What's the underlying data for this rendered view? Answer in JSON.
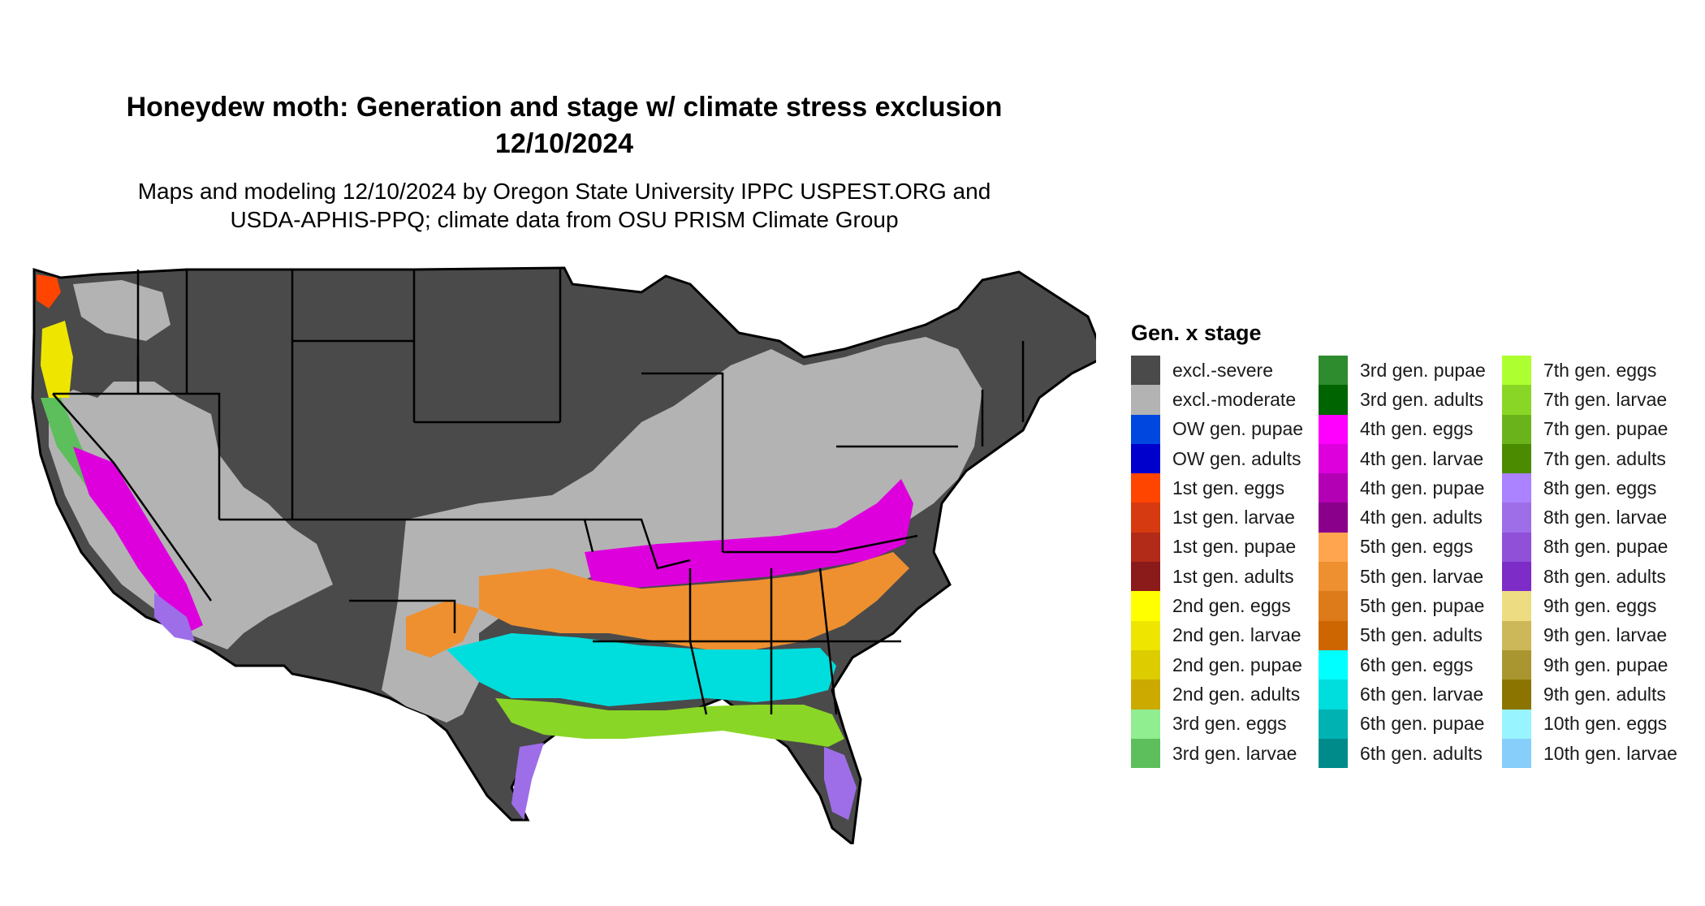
{
  "title": {
    "line1": "Honeydew moth: Generation and stage w/ climate stress exclusion",
    "line2": "12/10/2024"
  },
  "subtitle": {
    "line1": "Maps and modeling 12/10/2024 by Oregon State University IPPC USPEST.ORG and",
    "line2": "USDA-APHIS-PPQ; climate data from OSU PRISM Climate Group"
  },
  "legend": {
    "title": "Gen. x stage",
    "columns": [
      [
        {
          "label": "excl.-severe",
          "color": "#4a4a4a"
        },
        {
          "label": "excl.-moderate",
          "color": "#b3b3b3"
        },
        {
          "label": "OW gen. pupae",
          "color": "#0047e0"
        },
        {
          "label": "OW gen. adults",
          "color": "#0000cd"
        },
        {
          "label": "1st gen. eggs",
          "color": "#ff4500"
        },
        {
          "label": "1st gen. larvae",
          "color": "#d63a10"
        },
        {
          "label": "1st gen. pupae",
          "color": "#b22a18"
        },
        {
          "label": "1st gen. adults",
          "color": "#8b1a1a"
        },
        {
          "label": "2nd gen. eggs",
          "color": "#ffff00"
        },
        {
          "label": "2nd gen. larvae",
          "color": "#eee600"
        },
        {
          "label": "2nd gen. pupae",
          "color": "#ddcc00"
        },
        {
          "label": "2nd gen. adults",
          "color": "#ccaa00"
        },
        {
          "label": "3rd gen. eggs",
          "color": "#90ee90"
        },
        {
          "label": "3rd gen. larvae",
          "color": "#5cbf5c"
        }
      ],
      [
        {
          "label": "3rd gen. pupae",
          "color": "#2e8b2e"
        },
        {
          "label": "3rd gen. adults",
          "color": "#006400"
        },
        {
          "label": "4th gen. eggs",
          "color": "#ff00ff"
        },
        {
          "label": "4th gen. larvae",
          "color": "#dd00dd"
        },
        {
          "label": "4th gen. pupae",
          "color": "#b400b4"
        },
        {
          "label": "4th gen. adults",
          "color": "#8b008b"
        },
        {
          "label": "5th gen. eggs",
          "color": "#ffa54f"
        },
        {
          "label": "5th gen. larvae",
          "color": "#ee9030"
        },
        {
          "label": "5th gen. pupae",
          "color": "#dd7a1a"
        },
        {
          "label": "5th gen. adults",
          "color": "#cd6600"
        },
        {
          "label": "6th gen. eggs",
          "color": "#00ffff"
        },
        {
          "label": "6th gen. larvae",
          "color": "#00dddd"
        },
        {
          "label": "6th gen. pupae",
          "color": "#00b2b2"
        },
        {
          "label": "6th gen. adults",
          "color": "#008b8b"
        }
      ],
      [
        {
          "label": "7th gen. eggs",
          "color": "#adff2f"
        },
        {
          "label": "7th gen. larvae",
          "color": "#8ad626"
        },
        {
          "label": "7th gen. pupae",
          "color": "#6bb31a"
        },
        {
          "label": "7th gen. adults",
          "color": "#4a8b00"
        },
        {
          "label": "8th gen. eggs",
          "color": "#ab82ff"
        },
        {
          "label": "8th gen. larvae",
          "color": "#9e6ee8"
        },
        {
          "label": "8th gen. pupae",
          "color": "#9050d8"
        },
        {
          "label": "8th gen. adults",
          "color": "#7d2cc8"
        },
        {
          "label": "9th gen. eggs",
          "color": "#eedc82"
        },
        {
          "label": "9th gen. larvae",
          "color": "#ccb858"
        },
        {
          "label": "9th gen. pupae",
          "color": "#aa9630"
        },
        {
          "label": "9th gen. adults",
          "color": "#8b7500"
        },
        {
          "label": "10th gen. eggs",
          "color": "#98f5ff"
        },
        {
          "label": "10th gen. larvae",
          "color": "#87cefa"
        }
      ]
    ]
  }
}
